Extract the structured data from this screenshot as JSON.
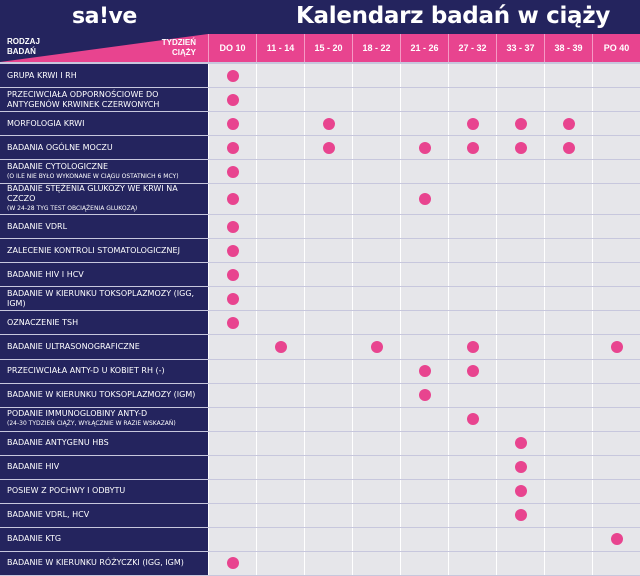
{
  "logo": "sa!ve",
  "title": "Kalendarz badań w ciąży",
  "header": {
    "row_label": [
      "RODZAJ",
      "BADAŃ"
    ],
    "week_label": [
      "TYDZIEŃ",
      "CIĄŻY"
    ]
  },
  "colors": {
    "navy": "#24245e",
    "pink": "#e8448f",
    "cell": "#e6e6ea"
  },
  "columns": [
    "DO 10",
    "11 - 14",
    "15 - 20",
    "18 - 22",
    "21 - 26",
    "27 - 32",
    "33 - 37",
    "38 - 39",
    "PO 40"
  ],
  "rows": [
    {
      "label": "GRUPA KRWI I RH",
      "note": "",
      "marks": [
        0
      ]
    },
    {
      "label": "PRZECIWCIAŁA ODPORNOŚCIOWE DO ANTYGENÓW KRWINEK CZERWONYCH",
      "note": "",
      "marks": [
        0
      ]
    },
    {
      "label": "MORFOLOGIA KRWI",
      "note": "",
      "marks": [
        0,
        2,
        5,
        6,
        7
      ]
    },
    {
      "label": "BADANIA OGÓLNE MOCZU",
      "note": "",
      "marks": [
        0,
        2,
        4,
        5,
        6,
        7
      ]
    },
    {
      "label": "BADANIE CYTOLOGICZNE",
      "note": "(O ILE NIE BYŁO WYKONANE W CIĄGU OSTATNICH 6 MCY)",
      "marks": [
        0
      ]
    },
    {
      "label": "BADANIE STĘŻENIA GLUKOZY WE KRWI NA CZCZO",
      "note": "(W 24-28 TYG TEST OBCIĄŻENIA GLUKOZĄ)",
      "marks": [
        0,
        4
      ]
    },
    {
      "label": "BADANIE VDRL",
      "note": "",
      "marks": [
        0
      ]
    },
    {
      "label": "ZALECENIE KONTROLI STOMATOLOGICZNEJ",
      "note": "",
      "marks": [
        0
      ]
    },
    {
      "label": "BADANIE HIV I HCV",
      "note": "",
      "marks": [
        0
      ]
    },
    {
      "label": "BADANIE W KIERUNKU TOKSOPLAZMOZY (IGG, IGM)",
      "note": "",
      "marks": [
        0
      ]
    },
    {
      "label": "OZNACZENIE TSH",
      "note": "",
      "marks": [
        0
      ]
    },
    {
      "label": "BADANIE ULTRASONOGRAFICZNE",
      "note": "",
      "marks": [
        1,
        3,
        5,
        8
      ]
    },
    {
      "label": "PRZECIWCIAŁA ANTY-D U KOBIET RH (-)",
      "note": "",
      "marks": [
        4,
        5
      ]
    },
    {
      "label": "BADANIE W KIERUNKU TOKSOPLAZMOZY (IGM)",
      "note": "",
      "marks": [
        4
      ]
    },
    {
      "label": "PODANIE IMMUNOGLOBINY ANTY-D",
      "note": "(24-30 TYDZIEŃ CIĄŻY, WYŁĄCZNIE W RAZIE WSKAZAŃ)",
      "marks": [
        5
      ]
    },
    {
      "label": "BADANIE ANTYGENU HBS",
      "note": "",
      "marks": [
        6
      ]
    },
    {
      "label": "BADANIE HIV",
      "note": "",
      "marks": [
        6
      ]
    },
    {
      "label": "POSIEW Z POCHWY I ODBYTU",
      "note": "",
      "marks": [
        6
      ]
    },
    {
      "label": "BADANIE VDRL, HCV",
      "note": "",
      "marks": [
        6
      ]
    },
    {
      "label": "BADANIE KTG",
      "note": "",
      "marks": [
        8
      ]
    },
    {
      "label": "BADANIE W KIERUNKU RÓŻYCZKI (IGG, IGM)",
      "note": "",
      "marks": [
        0
      ]
    }
  ]
}
